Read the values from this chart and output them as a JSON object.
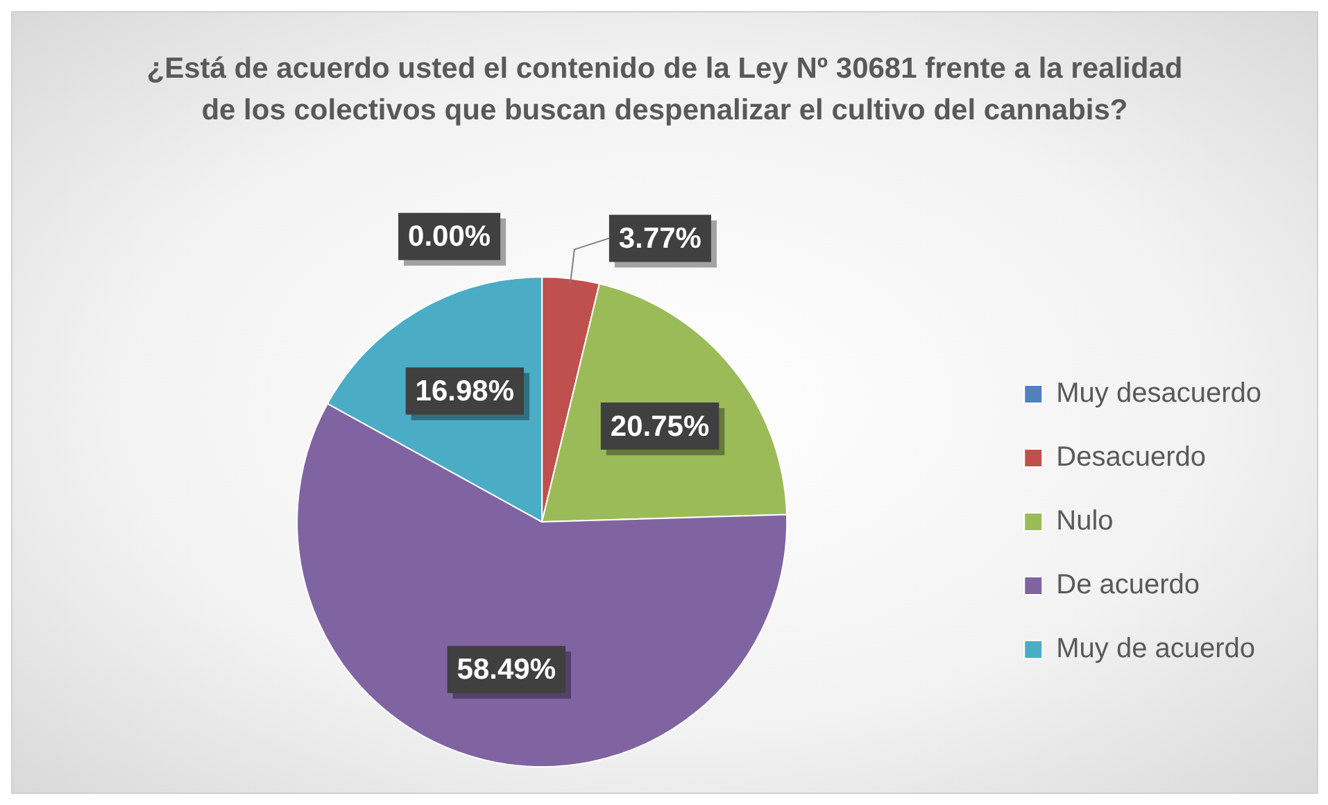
{
  "chart_data": {
    "type": "pie",
    "title": "¿Está de acuerdo usted el contenido de la Ley Nº 30681 frente a la realidad de los colectivos que buscan despenalizar el cultivo del cannabis?",
    "categories": [
      "Muy desacuerdo",
      "Desacuerdo",
      "Nulo",
      "De acuerdo",
      "Muy de acuerdo"
    ],
    "values": [
      0,
      3.77,
      20.75,
      58.49,
      16.98
    ],
    "value_labels": [
      "0.00%",
      "3.77%",
      "20.75%",
      "58.49%",
      "16.98%"
    ],
    "colors": [
      "#4f81bd",
      "#c0504d",
      "#9bbb59",
      "#8064a2",
      "#4bacc6"
    ],
    "legend": "right"
  }
}
